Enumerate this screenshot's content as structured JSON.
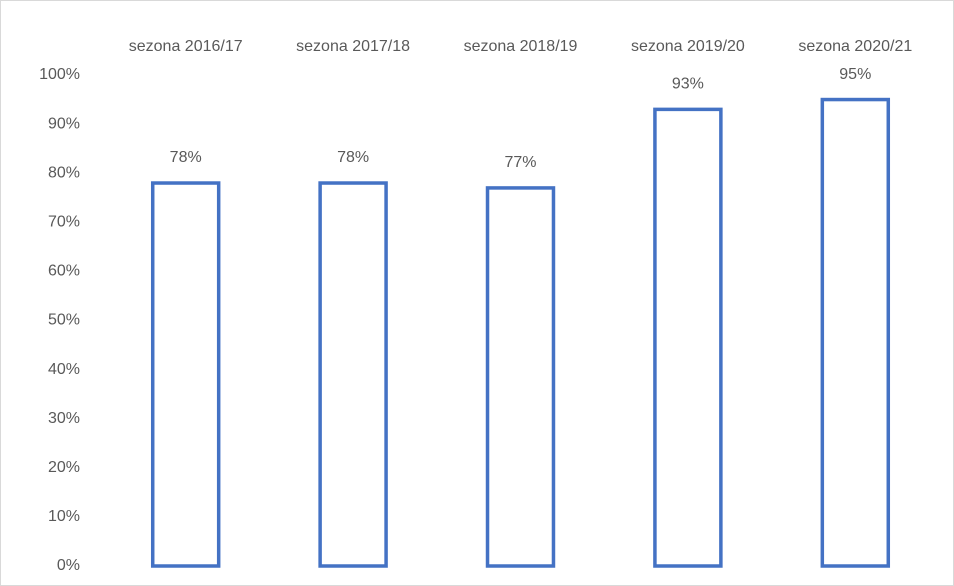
{
  "chart_data": {
    "type": "bar",
    "categories": [
      "sezona 2016/17",
      "sezona 2017/18",
      "sezona 2018/19",
      "sezona 2019/20",
      "sezona 2020/21"
    ],
    "values": [
      78,
      78,
      77,
      93,
      95
    ],
    "value_labels": [
      "78%",
      "78%",
      "77%",
      "93%",
      "95%"
    ],
    "color": "#4472c4",
    "ylim": [
      0,
      100
    ],
    "yticks": [
      {
        "value": 0,
        "label": "0%"
      },
      {
        "value": 10,
        "label": "10%"
      },
      {
        "value": 20,
        "label": "20%"
      },
      {
        "value": 30,
        "label": "30%"
      },
      {
        "value": 40,
        "label": "40%"
      },
      {
        "value": 50,
        "label": "50%"
      },
      {
        "value": 60,
        "label": "60%"
      },
      {
        "value": 70,
        "label": "70%"
      },
      {
        "value": 80,
        "label": "80%"
      },
      {
        "value": 90,
        "label": "90%"
      },
      {
        "value": 100,
        "label": "100%"
      }
    ],
    "grid": false
  }
}
